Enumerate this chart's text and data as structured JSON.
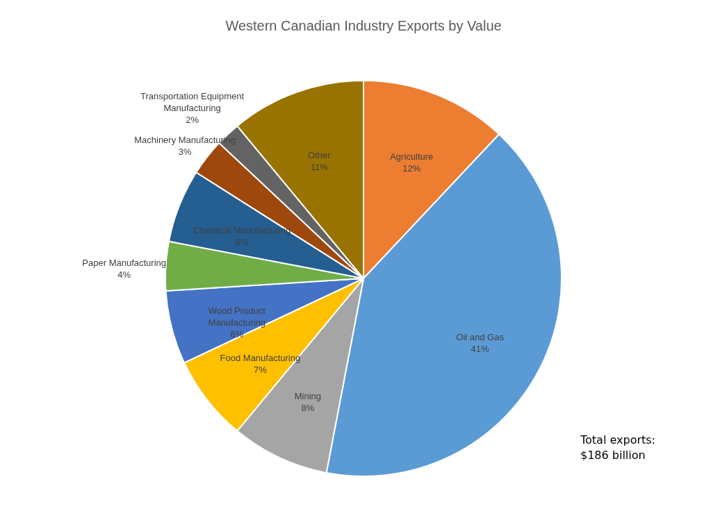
{
  "chart_data": {
    "type": "pie",
    "title": "Western Canadian Industry Exports by Value",
    "categories": [
      "Agriculture",
      "Oil and Gas",
      "Mining",
      "Food Manufacturing",
      "Wood Product Manufacturing",
      "Paper Manufacturing",
      "Chemical Manufacturing",
      "Machinery Manufacturing",
      "Transportation Equipment Manufacturing",
      "Other"
    ],
    "values": [
      12,
      41,
      8,
      7,
      6,
      4,
      6,
      3,
      2,
      11
    ],
    "value_labels": [
      "12%",
      "41%",
      "8%",
      "7%",
      "6%",
      "4%",
      "6%",
      "3%",
      "2%",
      "11%"
    ],
    "colors": [
      "#ed7d31",
      "#5b9bd5",
      "#a5a5a5",
      "#ffc000",
      "#4472c4",
      "#70ad47",
      "#255e91",
      "#9e480e",
      "#636363",
      "#997300"
    ],
    "annotations": [
      "Total exports: $186 billion"
    ],
    "legend": false
  }
}
